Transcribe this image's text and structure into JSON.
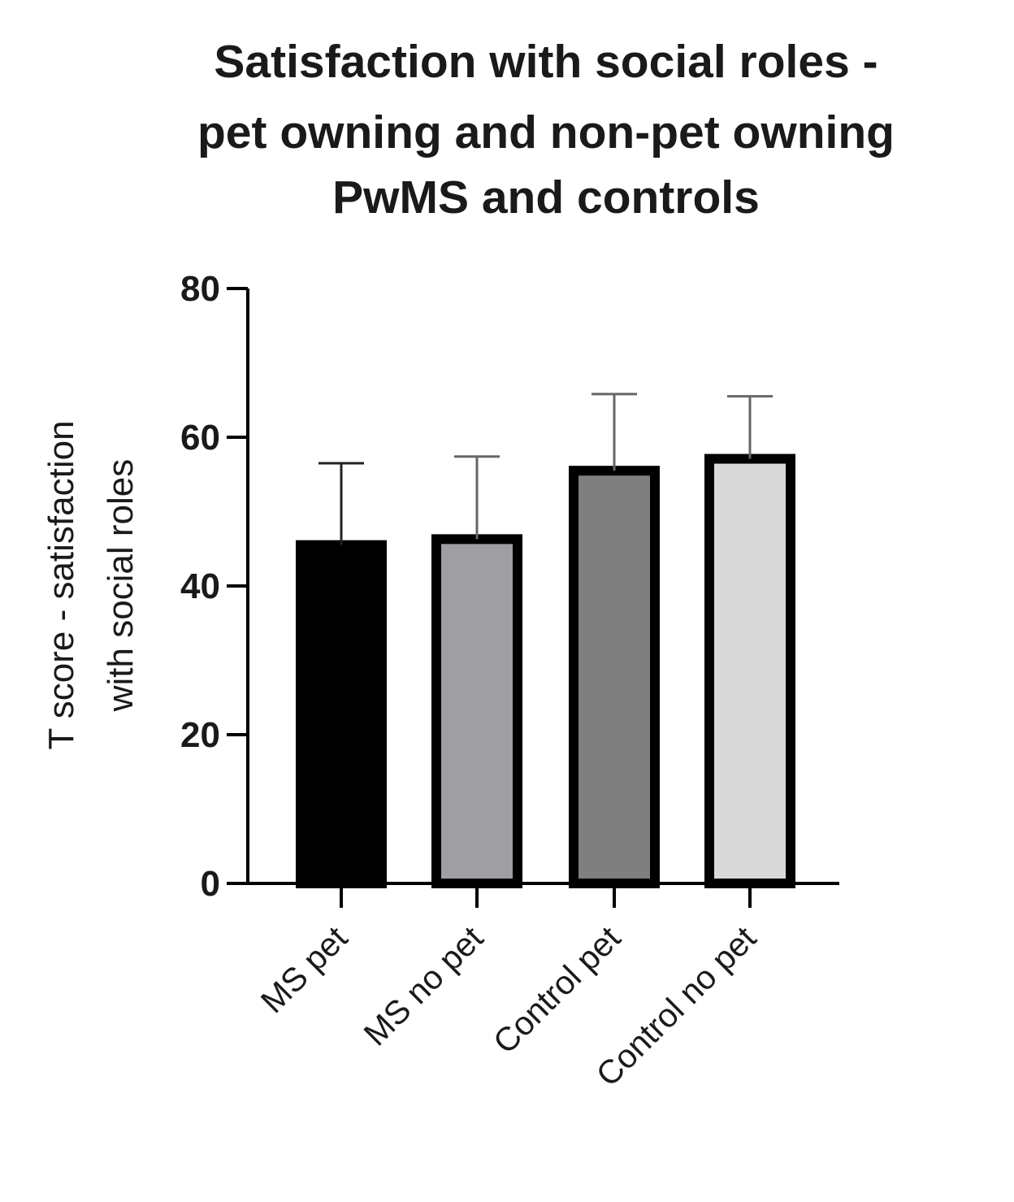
{
  "chart_data": {
    "type": "bar",
    "title": "Satisfaction with social roles - pet owning and non-pet owning PwMS and controls",
    "title_lines": [
      "Satisfaction with social roles -",
      "pet owning and non-pet owning",
      "PwMS and controls"
    ],
    "xlabel": "",
    "ylabel": "T score - satisfaction with social roles",
    "ylabel_lines": [
      "T score - satisfaction",
      "with social roles"
    ],
    "ylim": [
      0,
      80
    ],
    "yticks": [
      0,
      20,
      40,
      60,
      80
    ],
    "categories": [
      "MS pet",
      "MS no pet",
      "Control pet",
      "Control no pet"
    ],
    "values": [
      45.5,
      46.3,
      55.5,
      57.1
    ],
    "error_upper": [
      56.5,
      57.4,
      65.8,
      65.5
    ],
    "bar_colors": [
      "#000000",
      "#9e9ea3",
      "#7f7f7f",
      "#d9d9d9"
    ],
    "grid": false,
    "legend": "none"
  }
}
